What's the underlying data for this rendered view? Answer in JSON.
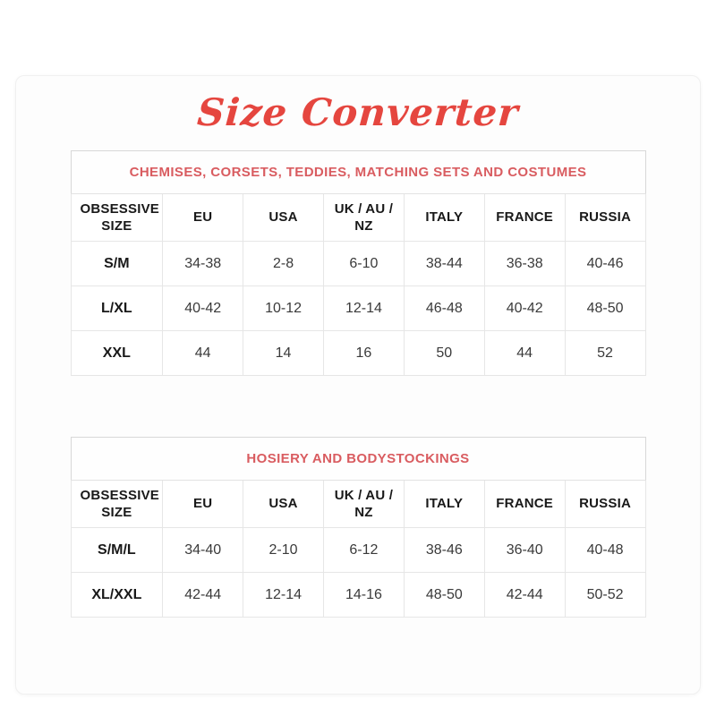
{
  "page": {
    "title": "Size Converter"
  },
  "colors": {
    "title_red": "#e5463f",
    "section_title_pink": "#d95c60"
  },
  "tables": [
    {
      "title": "CHEMISES, CORSETS, TEDDIES, MATCHING SETS AND COSTUMES",
      "columns": [
        "OBSESSIVE SIZE",
        "EU",
        "USA",
        "UK / AU / NZ",
        "ITALY",
        "FRANCE",
        "RUSSIA"
      ],
      "rows": [
        [
          "S/M",
          "34-38",
          "2-8",
          "6-10",
          "38-44",
          "36-38",
          "40-46"
        ],
        [
          "L/XL",
          "40-42",
          "10-12",
          "12-14",
          "46-48",
          "40-42",
          "48-50"
        ],
        [
          "XXL",
          "44",
          "14",
          "16",
          "50",
          "44",
          "52"
        ]
      ]
    },
    {
      "title": "HOSIERY AND BODYSTOCKINGS",
      "columns": [
        "OBSESSIVE SIZE",
        "EU",
        "USA",
        "UK / AU / NZ",
        "ITALY",
        "FRANCE",
        "RUSSIA"
      ],
      "rows": [
        [
          "S/M/L",
          "34-40",
          "2-10",
          "6-12",
          "38-46",
          "36-40",
          "40-48"
        ],
        [
          "XL/XXL",
          "42-44",
          "12-14",
          "14-16",
          "48-50",
          "42-44",
          "50-52"
        ]
      ]
    }
  ]
}
